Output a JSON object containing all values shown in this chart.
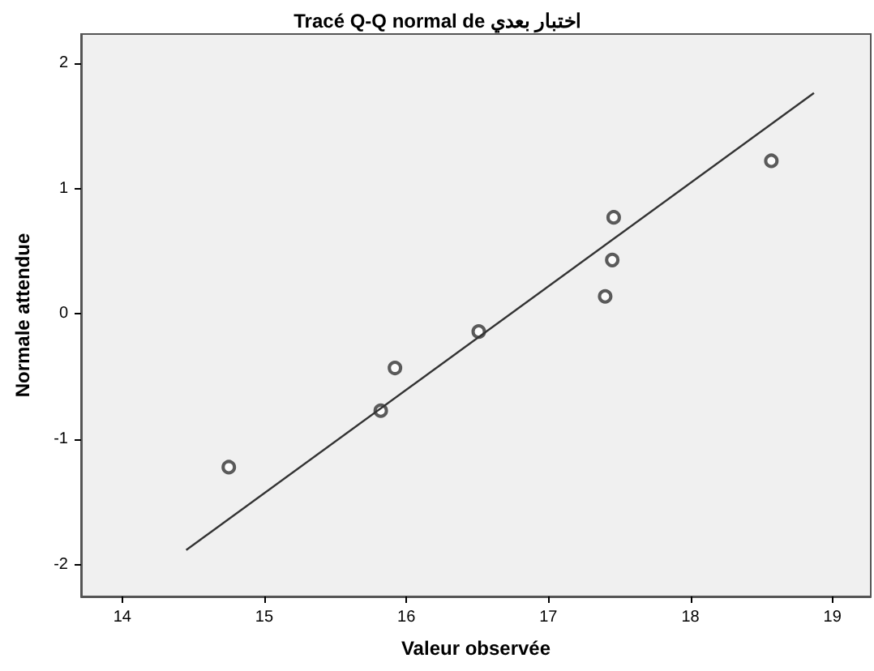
{
  "chart_data": {
    "type": "scatter",
    "title": "Tracé Q-Q normal de اختبار بعدي",
    "xlabel": "Valeur observée",
    "ylabel": "Normale attendue",
    "series": [
      {
        "color": "#333333",
        "marker": "circle",
        "x": [
          14.75,
          15.82,
          15.92,
          16.51,
          17.4,
          17.45,
          17.46,
          18.57
        ],
        "values": [
          -1.22,
          -0.77,
          -0.43,
          -0.14,
          0.14,
          0.43,
          0.77,
          1.22
        ]
      },
      {
        "type": "line",
        "color": "#333333",
        "marker": "none",
        "x": [
          14.45,
          18.87
        ],
        "values": [
          -1.88,
          1.76
        ]
      }
    ],
    "xlim": [
      13.71,
      19.27
    ],
    "xticks": [
      14,
      15,
      16,
      17,
      18,
      19
    ],
    "ylim": [
      -2.25,
      2.23
    ],
    "yticks": [
      -2,
      -1,
      0,
      1,
      2
    ]
  }
}
